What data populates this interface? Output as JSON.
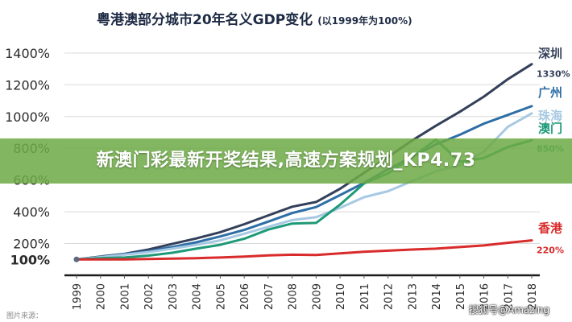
{
  "banner": {
    "text": "新澳门彩最新开奖结果,高速方案规划_KP4.73"
  },
  "footer": {
    "source": "图片来源：",
    "watermark": "搜狐号@Amazing"
  },
  "chart_data": {
    "type": "line",
    "title": "粤港澳部分城市20年名义GDP变化",
    "subtitle": "(以1999年为100%)",
    "x": [
      "1999",
      "2000",
      "2001",
      "2002",
      "2003",
      "2004",
      "2005",
      "2006",
      "2007",
      "2008",
      "2009",
      "2010",
      "2011",
      "2012",
      "2013",
      "2014",
      "2015",
      "2016",
      "2017",
      "2018"
    ],
    "y_ticks": [
      "100%",
      "200%",
      "400%",
      "600%",
      "800%",
      "1000%",
      "1200%",
      "1400%"
    ],
    "ylim": [
      0,
      1450
    ],
    "grid": true,
    "series": [
      {
        "name": "深圳",
        "end_label": "1330%",
        "color": "#34405a",
        "values": [
          100,
          118,
          135,
          162,
          198,
          232,
          272,
          322,
          377,
          432,
          462,
          545,
          645,
          745,
          848,
          942,
          1030,
          1125,
          1235,
          1330
        ]
      },
      {
        "name": "广州",
        "end_label": "",
        "color": "#2e6ea6",
        "values": [
          100,
          116,
          133,
          152,
          178,
          208,
          245,
          286,
          338,
          392,
          430,
          505,
          582,
          668,
          745,
          825,
          885,
          955,
          1010,
          1065
        ]
      },
      {
        "name": "珠海",
        "end_label": "",
        "color": "#a7c9e3",
        "values": [
          100,
          114,
          130,
          146,
          168,
          192,
          220,
          262,
          305,
          348,
          366,
          425,
          492,
          530,
          592,
          655,
          692,
          778,
          935,
          1020
        ]
      },
      {
        "name": "澳门",
        "end_label": "850%",
        "color": "#1e9a78",
        "values": [
          100,
          108,
          112,
          124,
          142,
          168,
          192,
          230,
          288,
          326,
          330,
          445,
          578,
          642,
          742,
          855,
          715,
          738,
          808,
          850
        ]
      },
      {
        "name": "香港",
        "end_label": "220%",
        "color": "#d92b2b",
        "values": [
          100,
          100,
          100,
          103,
          105,
          108,
          112,
          118,
          125,
          130,
          128,
          138,
          148,
          155,
          162,
          168,
          178,
          188,
          205,
          220
        ]
      }
    ]
  }
}
